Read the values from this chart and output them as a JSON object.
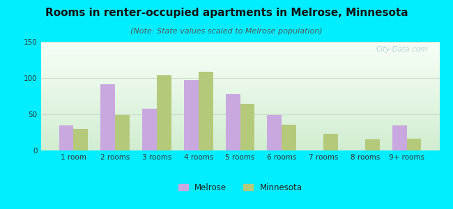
{
  "title": "Rooms in renter-occupied apartments in Melrose, Minnesota",
  "subtitle": "(Note: State values scaled to Melrose population)",
  "categories": [
    "1 room",
    "2 rooms",
    "3 rooms",
    "4 rooms",
    "5 rooms",
    "6 rooms",
    "7 rooms",
    "8 rooms",
    "9+ rooms"
  ],
  "melrose_values": [
    35,
    91,
    58,
    97,
    78,
    49,
    0,
    0,
    35
  ],
  "minnesota_values": [
    30,
    49,
    104,
    109,
    64,
    36,
    23,
    15,
    16
  ],
  "melrose_color": "#c9a8e0",
  "minnesota_color": "#b5c97a",
  "background_outer": "#00eeff",
  "ylim": [
    0,
    150
  ],
  "yticks": [
    0,
    50,
    100,
    150
  ],
  "title_fontsize": 11,
  "subtitle_fontsize": 8,
  "tick_fontsize": 7.5,
  "legend_fontsize": 8.5,
  "bar_width": 0.35,
  "watermark": "City-Data.com"
}
